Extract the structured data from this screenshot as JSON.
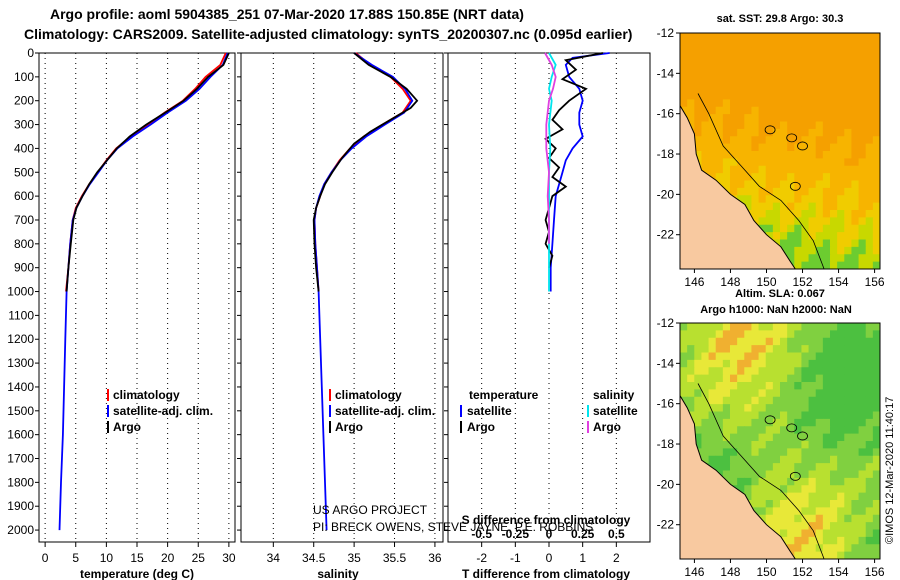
{
  "header": {
    "line1": "Argo profile: aoml 5904385_251 07-Mar-2020 17.88S 150.85E (NRT data)",
    "line2": "Climatology: CARS2009. Satellite-adjusted climatology: synTS_20200307.nc (0.095d earlier)"
  },
  "colors": {
    "climatology": "#ff0000",
    "satellite": "#0000ff",
    "argo": "#000000",
    "sal_satellite": "#00e5ee",
    "sal_argo": "#e040e0",
    "land": "#f8c9a0"
  },
  "chart_data": [
    {
      "type": "line",
      "id": "temperature",
      "xlabel": "temperature (deg C)",
      "xlim": [
        -1,
        31
      ],
      "xticks": [
        0,
        5,
        10,
        15,
        20,
        25,
        30
      ],
      "ylim": [
        2050,
        0
      ],
      "yticks": [
        0,
        100,
        200,
        300,
        400,
        500,
        600,
        700,
        800,
        900,
        1000,
        1100,
        1200,
        1300,
        1400,
        1500,
        1600,
        1700,
        1800,
        1900,
        2000
      ],
      "legend": [
        "climatology",
        "satellite-adj. clim.",
        "Argo"
      ],
      "series": [
        {
          "name": "climatology",
          "color": "#ff0000",
          "points": [
            [
              29.5,
              0
            ],
            [
              28.6,
              50
            ],
            [
              26.2,
              100
            ],
            [
              24.5,
              150
            ],
            [
              22.5,
              200
            ],
            [
              19.5,
              250
            ],
            [
              16.8,
              300
            ],
            [
              14,
              350
            ],
            [
              11.6,
              400
            ],
            [
              10,
              450
            ],
            [
              8.6,
              500
            ],
            [
              7.2,
              550
            ],
            [
              6,
              600
            ],
            [
              5,
              650
            ],
            [
              4.5,
              700
            ],
            [
              4.1,
              800
            ],
            [
              3.8,
              900
            ],
            [
              3.4,
              1000
            ]
          ]
        },
        {
          "name": "satellite-adj. clim.",
          "color": "#0000ff",
          "points": [
            [
              29.8,
              0
            ],
            [
              29,
              50
            ],
            [
              27,
              100
            ],
            [
              25.2,
              150
            ],
            [
              23,
              200
            ],
            [
              20,
              250
            ],
            [
              17.2,
              300
            ],
            [
              14.3,
              350
            ],
            [
              11.8,
              400
            ],
            [
              10.1,
              450
            ],
            [
              8.7,
              500
            ],
            [
              7.3,
              550
            ],
            [
              6.1,
              600
            ],
            [
              5.1,
              650
            ],
            [
              4.5,
              700
            ],
            [
              4.1,
              800
            ],
            [
              3.8,
              900
            ],
            [
              3.5,
              1000
            ],
            [
              3.3,
              1200
            ],
            [
              3.1,
              1400
            ],
            [
              2.9,
              1600
            ],
            [
              2.6,
              1800
            ],
            [
              2.35,
              2000
            ]
          ]
        },
        {
          "name": "Argo",
          "color": "#000000",
          "points": [
            [
              30,
              0
            ],
            [
              29.1,
              50
            ],
            [
              26.6,
              100
            ],
            [
              24.8,
              150
            ],
            [
              22.6,
              200
            ],
            [
              19.6,
              250
            ],
            [
              16.5,
              300
            ],
            [
              13.8,
              350
            ],
            [
              11.7,
              400
            ],
            [
              10.1,
              450
            ],
            [
              8.5,
              500
            ],
            [
              7.2,
              550
            ],
            [
              6.1,
              600
            ],
            [
              5.1,
              650
            ],
            [
              4.6,
              700
            ],
            [
              4.2,
              800
            ],
            [
              3.8,
              900
            ],
            [
              3.5,
              1000
            ]
          ]
        }
      ]
    },
    {
      "type": "line",
      "id": "salinity",
      "xlabel": "salinity",
      "xlim": [
        33.6,
        36.1
      ],
      "xticks": [
        34,
        34.5,
        35,
        35.5,
        36
      ],
      "ylim": [
        2050,
        0
      ],
      "legend": [
        "climatology",
        "satellite-adj. clim.",
        "Argo"
      ],
      "series": [
        {
          "name": "climatology",
          "color": "#ff0000",
          "points": [
            [
              35.02,
              0
            ],
            [
              35.2,
              50
            ],
            [
              35.45,
              100
            ],
            [
              35.6,
              150
            ],
            [
              35.7,
              200
            ],
            [
              35.6,
              250
            ],
            [
              35.35,
              300
            ],
            [
              35.12,
              350
            ],
            [
              34.95,
              400
            ],
            [
              34.82,
              450
            ],
            [
              34.72,
              500
            ],
            [
              34.63,
              550
            ],
            [
              34.58,
              600
            ],
            [
              34.53,
              650
            ],
            [
              34.51,
              700
            ],
            [
              34.52,
              800
            ],
            [
              34.54,
              900
            ],
            [
              34.56,
              1000
            ]
          ]
        },
        {
          "name": "satellite-adj. clim.",
          "color": "#0000ff",
          "points": [
            [
              35.0,
              0
            ],
            [
              35.22,
              50
            ],
            [
              35.48,
              100
            ],
            [
              35.63,
              150
            ],
            [
              35.72,
              200
            ],
            [
              35.62,
              250
            ],
            [
              35.38,
              300
            ],
            [
              35.15,
              350
            ],
            [
              34.97,
              400
            ],
            [
              34.83,
              450
            ],
            [
              34.72,
              500
            ],
            [
              34.63,
              550
            ],
            [
              34.57,
              600
            ],
            [
              34.53,
              650
            ],
            [
              34.51,
              700
            ],
            [
              34.52,
              800
            ],
            [
              34.54,
              900
            ],
            [
              34.56,
              1000
            ],
            [
              34.58,
              1200
            ],
            [
              34.6,
              1400
            ],
            [
              34.62,
              1600
            ],
            [
              34.64,
              1800
            ],
            [
              34.66,
              2000
            ]
          ]
        },
        {
          "name": "Argo",
          "color": "#000000",
          "points": [
            [
              35.0,
              0
            ],
            [
              35.18,
              50
            ],
            [
              35.45,
              100
            ],
            [
              35.65,
              150
            ],
            [
              35.78,
              200
            ],
            [
              35.7,
              230
            ],
            [
              35.45,
              280
            ],
            [
              35.2,
              330
            ],
            [
              35.0,
              380
            ],
            [
              34.85,
              440
            ],
            [
              34.73,
              500
            ],
            [
              34.64,
              550
            ],
            [
              34.58,
              600
            ],
            [
              34.53,
              650
            ],
            [
              34.5,
              700
            ],
            [
              34.51,
              800
            ],
            [
              34.53,
              900
            ],
            [
              34.56,
              1000
            ]
          ]
        }
      ]
    },
    {
      "type": "line",
      "id": "difference",
      "xlabel": "T difference from climatology",
      "xlabel2": "S difference from climatology",
      "xlim": [
        -3,
        3
      ],
      "xticks": [
        -2,
        -1,
        0,
        1,
        2
      ],
      "x2ticks": [
        -0.5,
        -0.25,
        0,
        0.25,
        0.5
      ],
      "ylim": [
        2050,
        0
      ],
      "legend": {
        "temperature_header": "temperature",
        "salinity_header": "salinity",
        "items": [
          "satellite",
          "Argo",
          "satellite",
          "Argo"
        ]
      },
      "series": [
        {
          "name": "temperature satellite",
          "color": "#0000ff",
          "points": [
            [
              1.8,
              0
            ],
            [
              0.7,
              20
            ],
            [
              0.5,
              50
            ],
            [
              0.6,
              100
            ],
            [
              0.9,
              150
            ],
            [
              1.0,
              200
            ],
            [
              0.9,
              250
            ],
            [
              0.9,
              300
            ],
            [
              1.0,
              350
            ],
            [
              0.7,
              400
            ],
            [
              0.5,
              450
            ],
            [
              0.4,
              500
            ],
            [
              0.3,
              550
            ],
            [
              0.2,
              600
            ],
            [
              0.15,
              700
            ],
            [
              0.1,
              800
            ],
            [
              0.05,
              900
            ],
            [
              0.05,
              1000
            ]
          ]
        },
        {
          "name": "temperature Argo",
          "color": "#000000",
          "points": [
            [
              1.6,
              0
            ],
            [
              0.5,
              30
            ],
            [
              0.8,
              70
            ],
            [
              0.4,
              110
            ],
            [
              1.1,
              150
            ],
            [
              0.6,
              200
            ],
            [
              0.3,
              240
            ],
            [
              0.1,
              280
            ],
            [
              0.4,
              320
            ],
            [
              -0.1,
              360
            ],
            [
              0.2,
              400
            ],
            [
              0.0,
              440
            ],
            [
              0.3,
              480
            ],
            [
              0.1,
              520
            ],
            [
              0.5,
              560
            ],
            [
              0.1,
              600
            ],
            [
              0.0,
              650
            ],
            [
              -0.1,
              700
            ],
            [
              0.0,
              750
            ],
            [
              -0.1,
              800
            ],
            [
              0.1,
              850
            ],
            [
              0.0,
              900
            ]
          ]
        },
        {
          "name": "salinity satellite",
          "color": "#00e5ee",
          "points": [
            [
              0.0,
              0
            ],
            [
              0.05,
              50
            ],
            [
              0.02,
              100
            ],
            [
              0.0,
              150
            ],
            [
              0.02,
              200
            ],
            [
              0.0,
              300
            ],
            [
              0.01,
              400
            ],
            [
              0.0,
              500
            ],
            [
              0.0,
              600
            ],
            [
              0.0,
              800
            ],
            [
              0.0,
              1000
            ]
          ]
        },
        {
          "name": "salinity Argo",
          "color": "#e040e0",
          "points": [
            [
              -0.03,
              0
            ],
            [
              0.02,
              50
            ],
            [
              0.05,
              100
            ],
            [
              0.03,
              150
            ],
            [
              0.0,
              200
            ],
            [
              -0.02,
              300
            ],
            [
              -0.02,
              400
            ],
            [
              0.0,
              500
            ],
            [
              -0.01,
              600
            ],
            [
              0.0,
              700
            ],
            [
              0.0,
              800
            ]
          ]
        }
      ]
    },
    {
      "type": "heatmap",
      "id": "sst-map",
      "title": "sat. SST: 29.8 Argo: 30.3",
      "xticks": [
        146,
        148,
        150,
        152,
        154,
        156
      ],
      "yticks": [
        -12,
        -14,
        -16,
        -18,
        -20,
        -22
      ],
      "xlim": [
        145.2,
        156.3
      ],
      "ylim": [
        -23.7,
        -12
      ]
    },
    {
      "type": "heatmap",
      "id": "sla-map",
      "title": "Altim. SLA: 0.067",
      "subtitle": "Argo h1000: NaN h2000: NaN",
      "xticks": [
        146,
        148,
        150,
        152,
        154,
        156
      ],
      "yticks": [
        -12,
        -14,
        -16,
        -18,
        -20,
        -22
      ],
      "xlim": [
        145.2,
        156.3
      ],
      "ylim": [
        -23.7,
        -12
      ]
    }
  ],
  "credits": {
    "line1": "US ARGO PROJECT",
    "line2": "PI: BRECK OWENS, STEVE JAYNE, P.E. ROBBINS"
  },
  "footer_stamp": "©IMOS 12-Mar-2020 11:40:17"
}
